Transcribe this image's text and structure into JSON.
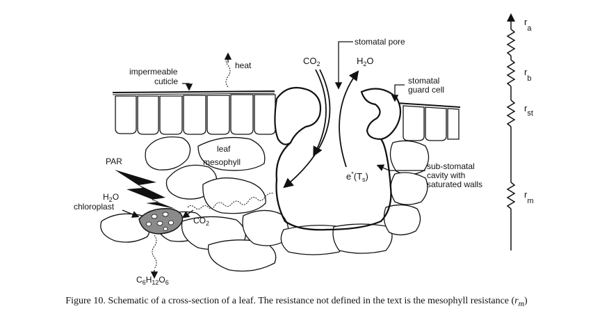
{
  "labels": {
    "stomatal_pore": "stomatal pore",
    "co2_top": "CO",
    "co2_top_sub": "2",
    "h2o_top": "H",
    "h2o_top_sub": "2",
    "h2o_top_end": "O",
    "heat": "heat",
    "impermeable": "impermeable",
    "cuticle": "cuticle",
    "stomatal": "stomatal",
    "guard_cell": "guard cell",
    "leaf": "leaf",
    "mesophyll": "mesophyll",
    "par": "PAR",
    "h2o_left": "H",
    "h2o_left_sub": "2",
    "h2o_left_end": "O",
    "chloroplast": "chloroplast",
    "co2_mid": "CO",
    "co2_mid_sub": "2",
    "e_star": "e",
    "e_star_sup": "*",
    "e_star_paren": "(T",
    "e_star_sub": "s",
    "e_star_close": ")",
    "sub_stomatal_1": "sub-stomatal",
    "sub_stomatal_2": "cavity with",
    "sub_stomatal_3": "saturated walls",
    "glucose_c": "C",
    "glucose_c_sub": "6",
    "glucose_h": "H",
    "glucose_h_sub": "12",
    "glucose_o": "O",
    "glucose_o_sub": "6"
  },
  "resistances": {
    "ra": "r",
    "ra_sub": "a",
    "rb": "r",
    "rb_sub": "b",
    "rst": "r",
    "rst_sub": "st",
    "rm": "r",
    "rm_sub": "m"
  },
  "caption": {
    "text": "Figure 10. Schematic of a cross-section of a leaf. The resistance not defined in the text is the mesophyll resistance (",
    "r": "r",
    "sub": "m",
    "close": ")"
  }
}
